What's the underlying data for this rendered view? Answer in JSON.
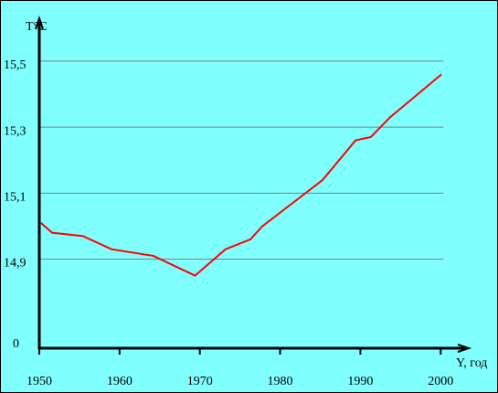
{
  "chart_data": {
    "type": "line",
    "y_axis_label": "T°C",
    "x_axis_label": "Y, год",
    "y_origin_label": "0",
    "series": [
      {
        "name": "T",
        "color": "#ff0000",
        "x": [
          1950.2,
          1951.6,
          1955.4,
          1959.0,
          1964.2,
          1969.4,
          1973.2,
          1976.3,
          1977.8,
          1985.3,
          1989.4,
          1991.3,
          1993.7,
          2000.1
        ],
        "values": [
          15.01,
          14.98,
          14.97,
          14.93,
          14.91,
          14.85,
          14.93,
          14.96,
          15.0,
          15.14,
          15.26,
          15.27,
          15.33,
          15.46
        ]
      }
    ],
    "xlim": [
      1950,
      2003.5
    ],
    "xticks": [
      1950,
      1960,
      1970,
      1980,
      1990,
      2000
    ],
    "ylim": [
      14.63,
      15.63
    ],
    "yticks": [
      {
        "value": 14.9,
        "label": "14,9"
      },
      {
        "value": 15.1,
        "label": "15,1"
      },
      {
        "value": 15.3,
        "label": "15,3"
      },
      {
        "value": 15.5,
        "label": "15,5"
      }
    ],
    "grid": true
  }
}
